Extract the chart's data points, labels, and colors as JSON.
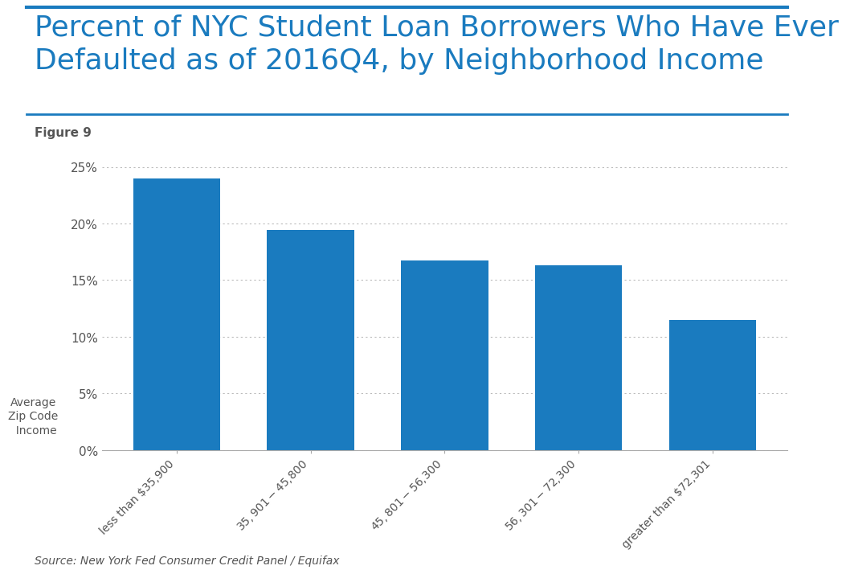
{
  "title": "Percent of NYC Student Loan Borrowers Who Have Ever\nDefaulted as of 2016Q4, by Neighborhood Income",
  "figure_label": "Figure 9",
  "categories": [
    "less than $35,900",
    "$35,901-$45,800",
    "$45,801-$56,300",
    "$56,301-$72,300",
    "greater than $72,301"
  ],
  "values": [
    0.24,
    0.194,
    0.167,
    0.163,
    0.115
  ],
  "bar_color": "#1a7bbf",
  "ylim": [
    0,
    0.27
  ],
  "yticks": [
    0.0,
    0.05,
    0.1,
    0.15,
    0.2,
    0.25
  ],
  "ytick_labels": [
    "0%",
    "5%",
    "10%",
    "15%",
    "20%",
    "25%"
  ],
  "source_text": "Source: New York Fed Consumer Credit Panel / Equifax",
  "title_color": "#1a7bbf",
  "title_fontsize": 26,
  "figure_label_fontsize": 11,
  "grid_color": "#bbbbbb",
  "background_color": "#ffffff",
  "border_color": "#1a7bbf",
  "tick_label_color": "#555555",
  "source_fontsize": 10,
  "xtick_fontsize": 10,
  "ytick_fontsize": 11,
  "xlabel_text": "Average\nZip Code\n  Income",
  "xlabel_fontsize": 10
}
